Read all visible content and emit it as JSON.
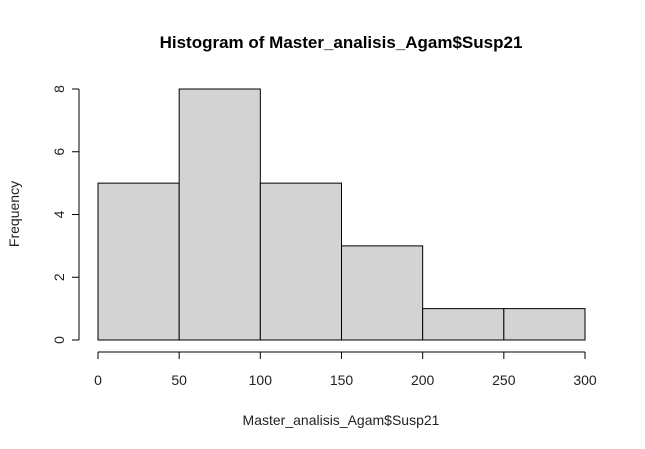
{
  "chart_data": {
    "type": "bar",
    "title": "Histogram of Master_analisis_Agam$Susp21",
    "xlabel": "Master_analisis_Agam$Susp21",
    "ylabel": "Frequency",
    "bins": [
      {
        "from": 0,
        "to": 50,
        "count": 5
      },
      {
        "from": 50,
        "to": 100,
        "count": 8
      },
      {
        "from": 100,
        "to": 150,
        "count": 5
      },
      {
        "from": 150,
        "to": 200,
        "count": 3
      },
      {
        "from": 200,
        "to": 250,
        "count": 1
      },
      {
        "from": 250,
        "to": 300,
        "count": 1
      }
    ],
    "xlim": [
      0,
      300
    ],
    "ylim": [
      0,
      8
    ],
    "xticks": [
      0,
      50,
      100,
      150,
      200,
      250,
      300
    ],
    "yticks": [
      0,
      2,
      4,
      6,
      8
    ],
    "bar_color": "#d3d3d3",
    "grid": false,
    "legend": "none"
  }
}
